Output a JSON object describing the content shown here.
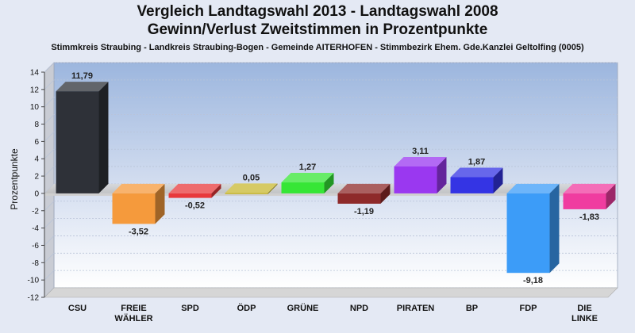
{
  "chart_data": {
    "type": "bar",
    "title": "Vergleich Landtagswahl 2013 - Landtagswahl 2008",
    "subtitle": "Gewinn/Verlust Zweitstimmen in Prozentpunkte",
    "caption": "Stimmkreis Straubing - Landkreis Straubing-Bogen - Gemeinde AITERHOFEN - Stimmbezirk Ehem. Gde.Kanzlei Geltolfing (0005)",
    "xlabel": "",
    "ylabel": "Prozentpunkte",
    "ylim": [
      -12,
      14
    ],
    "yticks": [
      14,
      12,
      10,
      8,
      6,
      4,
      2,
      0,
      -2,
      -4,
      -6,
      -8,
      -10,
      -12
    ],
    "grid": true,
    "legend": "none",
    "categories": [
      {
        "lines": [
          "CSU"
        ]
      },
      {
        "lines": [
          "FREIE",
          "WÄHLER"
        ]
      },
      {
        "lines": [
          "SPD"
        ]
      },
      {
        "lines": [
          "ÖDP"
        ]
      },
      {
        "lines": [
          "GRÜNE"
        ]
      },
      {
        "lines": [
          "NPD"
        ]
      },
      {
        "lines": [
          "PIRATEN"
        ]
      },
      {
        "lines": [
          "BP"
        ]
      },
      {
        "lines": [
          "FDP"
        ]
      },
      {
        "lines": [
          "DIE",
          "LINKE"
        ]
      }
    ],
    "values": [
      11.79,
      -3.52,
      -0.52,
      0.05,
      1.27,
      -1.19,
      3.11,
      1.87,
      -9.18,
      -1.83
    ],
    "value_labels": [
      "11,79",
      "-3,52",
      "-0,52",
      "0,05",
      "1,27",
      "-1,19",
      "3,11",
      "1,87",
      "-9,18",
      "-1,83"
    ],
    "colors": [
      "#2e3138",
      "#f59a3c",
      "#e8393c",
      "#c8b832",
      "#36e636",
      "#8e2a2a",
      "#9a38f0",
      "#3434e4",
      "#3c9cf8",
      "#f03ca0"
    ]
  }
}
